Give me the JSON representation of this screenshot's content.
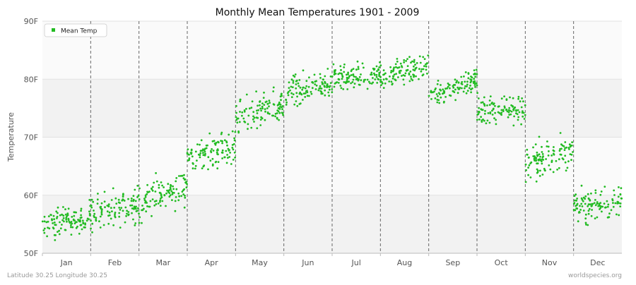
{
  "chart_data": {
    "type": "scatter",
    "title": "Monthly Mean Temperatures 1901 - 2009",
    "xlabel": "",
    "ylabel": "Temperature",
    "ylim": [
      50,
      90
    ],
    "y_ticks": [
      "50F",
      "60F",
      "70F",
      "80F",
      "90F"
    ],
    "categories": [
      "Jan",
      "Feb",
      "Mar",
      "Apr",
      "May",
      "Jun",
      "Jul",
      "Aug",
      "Sep",
      "Oct",
      "Nov",
      "Dec"
    ],
    "grid": true,
    "legend_position": "top-left",
    "series": [
      {
        "name": "Mean Temp",
        "color": "#22bb22",
        "start_of_month": [
          54.5,
          56.8,
          58.5,
          66.5,
          73.0,
          77.5,
          80.0,
          80.5,
          77.0,
          74.5,
          65.5,
          58.0
        ],
        "end_of_month": [
          56.5,
          58.5,
          62.0,
          68.5,
          75.5,
          79.5,
          81.0,
          82.5,
          80.0,
          75.0,
          67.5,
          59.0
        ],
        "spread": [
          1.4,
          1.8,
          1.8,
          1.7,
          1.8,
          1.5,
          1.2,
          1.2,
          1.3,
          1.6,
          1.6,
          1.6
        ]
      }
    ]
  },
  "footer": {
    "left": "Latitude 30.25 Longitude 30.25",
    "right": "worldspecies.org"
  }
}
